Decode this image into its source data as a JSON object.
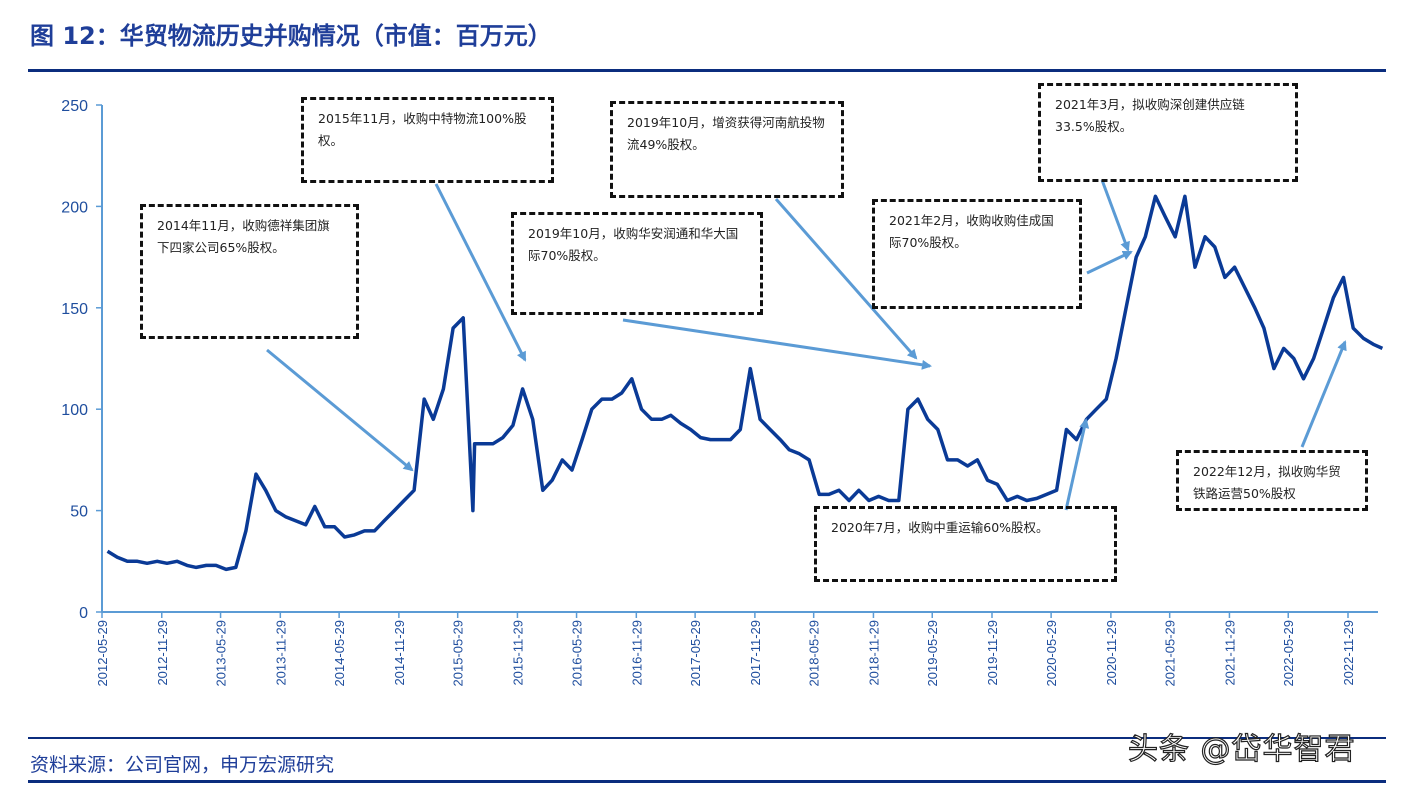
{
  "title": "图 12：华贸物流历史并购情况（市值：百万元）",
  "footer": "资料来源：公司官网，申万宏源研究",
  "watermark": "头条 @岱华智君",
  "colors": {
    "line": "#0a3a96",
    "axis": "#5b9bd5",
    "arrow": "#5b9bd5",
    "title": "#1f3e99"
  },
  "annotations": [
    {
      "text": "2014年11月，收购德祥集团旗下四家公司65%股权。"
    },
    {
      "text": "2015年11月，收购中特物流100%股权。"
    },
    {
      "text": "2019年10月，增资获得河南航投物流49%股权。"
    },
    {
      "text": "2019年10月，收购华安润通和华大国际70%股权。"
    },
    {
      "text": "2021年2月，收购收购佳成国际70%股权。"
    },
    {
      "text": "2021年3月，拟收购深创建供应链33.5%股权。"
    },
    {
      "text": "2020年7月，收购中重运输60%股权。"
    },
    {
      "text": "2022年12月，拟收购华贸铁路运营50%股权"
    }
  ],
  "chart_data": {
    "type": "line",
    "title": "",
    "xlabel": "",
    "ylabel": "",
    "ylim": [
      0,
      250
    ],
    "yticks": [
      0,
      50,
      100,
      150,
      200,
      250
    ],
    "xticks": [
      "2012-05-29",
      "2012-11-29",
      "2013-05-29",
      "2013-11-29",
      "2014-05-29",
      "2014-11-29",
      "2015-05-29",
      "2015-11-29",
      "2016-05-29",
      "2016-11-29",
      "2017-05-29",
      "2017-11-29",
      "2018-05-29",
      "2018-11-29",
      "2019-05-29",
      "2019-11-29",
      "2020-05-29",
      "2020-11-29",
      "2021-05-29",
      "2021-11-29",
      "2022-05-29",
      "2022-11-29"
    ],
    "grid": false,
    "legend": "none",
    "series": [
      {
        "x": [
          "2012-06",
          "2012-07",
          "2012-08",
          "2012-09",
          "2012-10",
          "2012-11",
          "2012-12",
          "2013-01",
          "2013-02",
          "2013-03",
          "2013-04",
          "2013-05",
          "2013-06",
          "2013-07",
          "2013-08",
          "2013-09",
          "2013-10",
          "2013-11",
          "2013-12",
          "2014-01",
          "2014-02",
          "2014-03",
          "2014-04",
          "2014-05",
          "2014-06",
          "2014-07",
          "2014-08",
          "2014-09",
          "2014-10",
          "2014-11",
          "2014-12",
          "2015-01",
          "2015-02",
          "2015-03",
          "2015-04",
          "2015-05",
          "2015-06",
          "2015-07",
          "2015-07-20",
          "2015-09",
          "2015-10",
          "2015-11",
          "2015-12",
          "2016-01",
          "2016-02",
          "2016-03",
          "2016-04",
          "2016-05",
          "2016-06",
          "2016-07",
          "2016-08",
          "2016-09",
          "2016-10",
          "2016-11",
          "2016-12",
          "2017-01",
          "2017-02",
          "2017-03",
          "2017-04",
          "2017-05",
          "2017-06",
          "2017-07",
          "2017-08",
          "2017-09",
          "2017-10",
          "2017-11",
          "2017-12",
          "2018-01",
          "2018-02",
          "2018-03",
          "2018-04",
          "2018-05",
          "2018-06",
          "2018-07",
          "2018-08",
          "2018-09",
          "2018-10",
          "2018-11",
          "2018-12",
          "2019-01",
          "2019-02",
          "2019-03",
          "2019-04",
          "2019-05",
          "2019-06",
          "2019-07",
          "2019-08",
          "2019-09",
          "2019-10",
          "2019-11",
          "2019-12",
          "2020-01",
          "2020-02",
          "2020-03",
          "2020-04",
          "2020-05",
          "2020-06",
          "2020-07",
          "2020-08",
          "2020-09",
          "2020-10",
          "2020-11",
          "2020-12",
          "2021-01",
          "2021-02",
          "2021-03",
          "2021-04",
          "2021-05",
          "2021-06",
          "2021-07",
          "2021-08",
          "2021-09",
          "2021-10",
          "2021-11",
          "2021-12",
          "2022-01",
          "2022-02",
          "2022-03",
          "2022-04",
          "2022-05",
          "2022-06",
          "2022-07",
          "2022-08",
          "2022-09",
          "2022-10",
          "2022-11",
          "2022-12",
          "2023-01",
          "2023-02",
          "2023-03"
        ],
        "values": [
          30,
          27,
          25,
          25,
          24,
          25,
          24,
          25,
          23,
          22,
          23,
          23,
          21,
          22,
          40,
          68,
          60,
          50,
          47,
          45,
          43,
          52,
          42,
          42,
          37,
          38,
          40,
          40,
          45,
          50,
          55,
          60,
          105,
          95,
          110,
          140,
          145,
          50,
          83,
          83,
          86,
          92,
          110,
          95,
          60,
          65,
          75,
          70,
          85,
          100,
          105,
          105,
          108,
          115,
          100,
          95,
          95,
          97,
          93,
          90,
          86,
          85,
          85,
          85,
          90,
          120,
          95,
          90,
          85,
          80,
          78,
          75,
          58,
          58,
          60,
          55,
          60,
          55,
          57,
          55,
          55,
          100,
          105,
          95,
          90,
          75,
          75,
          72,
          75,
          65,
          63,
          55,
          57,
          55,
          56,
          58,
          60,
          90,
          85,
          95,
          100,
          105,
          125,
          150,
          175,
          185,
          205,
          195,
          185,
          205,
          170,
          185,
          180,
          165,
          170,
          160,
          150,
          140,
          120,
          130,
          125,
          115,
          125,
          140,
          155,
          165,
          140,
          135,
          132,
          130
        ]
      }
    ]
  }
}
